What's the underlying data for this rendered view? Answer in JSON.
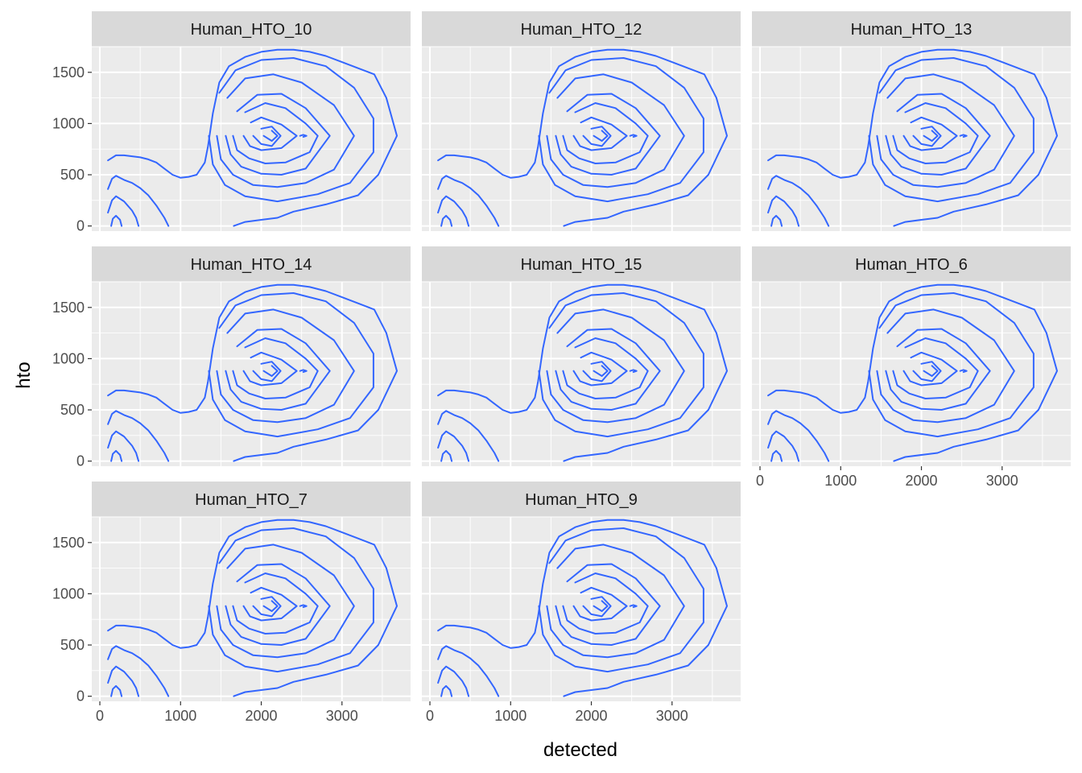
{
  "chart_data": {
    "type": "contour",
    "xlabel": "detected",
    "ylabel": "hto",
    "xlim": [
      -100,
      3850
    ],
    "ylim": [
      -50,
      1750
    ],
    "x_ticks": [
      0,
      1000,
      2000,
      3000
    ],
    "y_ticks": [
      0,
      500,
      1000,
      1500
    ],
    "grid": true,
    "line_color": "#3366FF",
    "facets": [
      "Human_HTO_10",
      "Human_HTO_12",
      "Human_HTO_13",
      "Human_HTO_14",
      "Human_HTO_15",
      "Human_HTO_6",
      "Human_HTO_7",
      "Human_HTO_9"
    ],
    "contours": [
      [
        [
          1660,
          0
        ],
        [
          1800,
          40
        ],
        [
          2000,
          60
        ],
        [
          2200,
          80
        ],
        [
          2400,
          140
        ],
        [
          2800,
          210
        ],
        [
          3200,
          300
        ],
        [
          3450,
          500
        ],
        [
          3680,
          880
        ],
        [
          3550,
          1250
        ],
        [
          3400,
          1480
        ],
        [
          3200,
          1540
        ],
        [
          3000,
          1600
        ],
        [
          2800,
          1660
        ],
        [
          2600,
          1700
        ],
        [
          2400,
          1720
        ],
        [
          2200,
          1720
        ],
        [
          2000,
          1700
        ],
        [
          1800,
          1650
        ],
        [
          1600,
          1560
        ],
        [
          1480,
          1400
        ],
        [
          1400,
          1100
        ],
        [
          1340,
          780
        ],
        [
          1300,
          620
        ],
        [
          1200,
          500
        ],
        [
          1100,
          480
        ],
        [
          1000,
          470
        ],
        [
          900,
          500
        ],
        [
          800,
          560
        ],
        [
          700,
          620
        ],
        [
          600,
          650
        ],
        [
          500,
          670
        ],
        [
          400,
          680
        ],
        [
          300,
          690
        ],
        [
          200,
          690
        ],
        [
          100,
          640
        ]
      ],
      [
        [
          1350,
          880
        ],
        [
          1400,
          600
        ],
        [
          1550,
          400
        ],
        [
          1800,
          290
        ],
        [
          2200,
          240
        ],
        [
          2700,
          310
        ],
        [
          3100,
          420
        ],
        [
          3390,
          720
        ],
        [
          3390,
          1050
        ],
        [
          3150,
          1350
        ],
        [
          2800,
          1560
        ],
        [
          2400,
          1640
        ],
        [
          2000,
          1620
        ],
        [
          1680,
          1520
        ],
        [
          1480,
          1300
        ]
      ],
      [
        [
          1450,
          880
        ],
        [
          1500,
          650
        ],
        [
          1650,
          500
        ],
        [
          1900,
          400
        ],
        [
          2200,
          380
        ],
        [
          2550,
          420
        ],
        [
          2900,
          550
        ],
        [
          3150,
          880
        ],
        [
          2900,
          1180
        ],
        [
          2500,
          1400
        ],
        [
          2150,
          1480
        ],
        [
          1800,
          1440
        ],
        [
          1580,
          1250
        ]
      ],
      [
        [
          1560,
          880
        ],
        [
          1620,
          700
        ],
        [
          1750,
          580
        ],
        [
          2000,
          510
        ],
        [
          2250,
          500
        ],
        [
          2550,
          560
        ],
        [
          2850,
          880
        ],
        [
          2550,
          1150
        ],
        [
          2250,
          1290
        ],
        [
          1950,
          1280
        ],
        [
          1700,
          1120
        ]
      ],
      [
        [
          1650,
          880
        ],
        [
          1700,
          740
        ],
        [
          1850,
          660
        ],
        [
          2050,
          610
        ],
        [
          2300,
          620
        ],
        [
          2600,
          720
        ],
        [
          2700,
          880
        ],
        [
          2550,
          1000
        ],
        [
          2300,
          1150
        ],
        [
          2050,
          1200
        ],
        [
          1800,
          1110
        ]
      ],
      [
        [
          1780,
          880
        ],
        [
          1860,
          780
        ],
        [
          2000,
          740
        ],
        [
          2250,
          760
        ],
        [
          2440,
          880
        ],
        [
          2250,
          990
        ],
        [
          2000,
          1060
        ],
        [
          1870,
          1010
        ]
      ],
      [
        [
          1900,
          880
        ],
        [
          2000,
          800
        ],
        [
          2130,
          780
        ],
        [
          2240,
          880
        ],
        [
          2130,
          970
        ],
        [
          2000,
          950
        ]
      ],
      [
        [
          2030,
          880
        ],
        [
          2130,
          830
        ],
        [
          2200,
          880
        ],
        [
          2130,
          930
        ]
      ],
      [
        [
          100,
          130
        ],
        [
          150,
          250
        ],
        [
          200,
          290
        ],
        [
          300,
          240
        ],
        [
          400,
          150
        ],
        [
          450,
          80
        ],
        [
          480,
          0
        ]
      ],
      [
        [
          100,
          360
        ],
        [
          150,
          460
        ],
        [
          200,
          490
        ],
        [
          300,
          450
        ],
        [
          400,
          420
        ],
        [
          500,
          370
        ],
        [
          600,
          300
        ],
        [
          700,
          200
        ],
        [
          800,
          80
        ],
        [
          850,
          0
        ]
      ],
      [
        [
          140,
          0
        ],
        [
          160,
          70
        ],
        [
          200,
          100
        ],
        [
          250,
          60
        ],
        [
          270,
          0
        ]
      ],
      [
        [
          2480,
          880
        ],
        [
          2520,
          890
        ],
        [
          2560,
          880
        ],
        [
          2520,
          870
        ]
      ]
    ]
  }
}
